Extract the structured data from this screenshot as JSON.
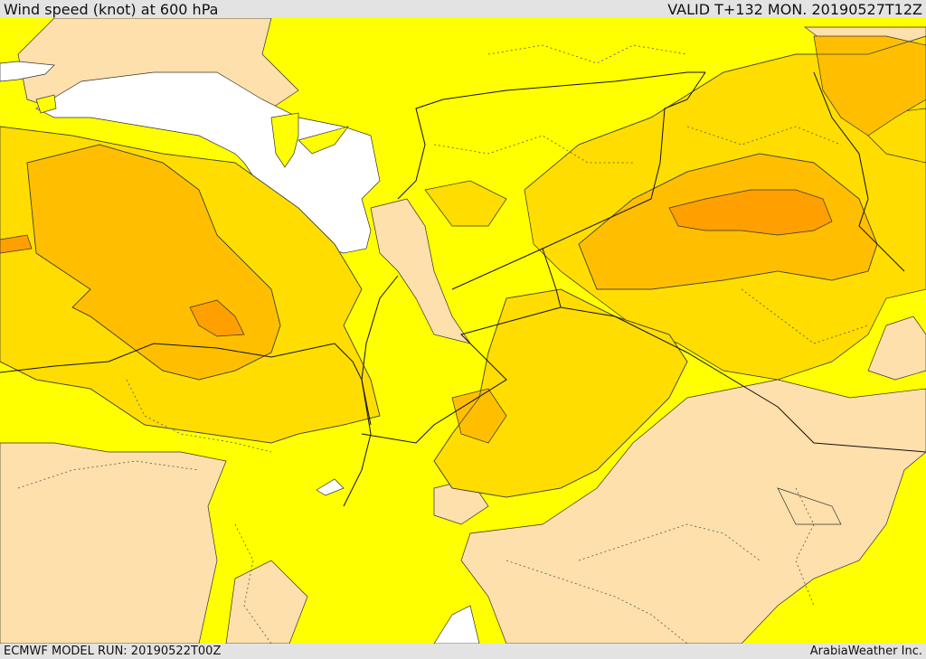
{
  "header": {
    "title": "Wind speed (knot) at 600 hPa",
    "valid_time": "VALID T+132 MON. 20190527T12Z"
  },
  "footer": {
    "model_run": "ECMWF MODEL RUN: 20190522T00Z",
    "credit": "ArabiaWeather Inc."
  },
  "colors": {
    "sea": "#ffffff",
    "band_lowest": "#fde0ab",
    "band_low": "#ffff00",
    "band_mid": "#ffdd00",
    "band_high": "#ffbf00",
    "band_highest": "#ff9f00",
    "contour": "#333333",
    "border": "#111111"
  }
}
